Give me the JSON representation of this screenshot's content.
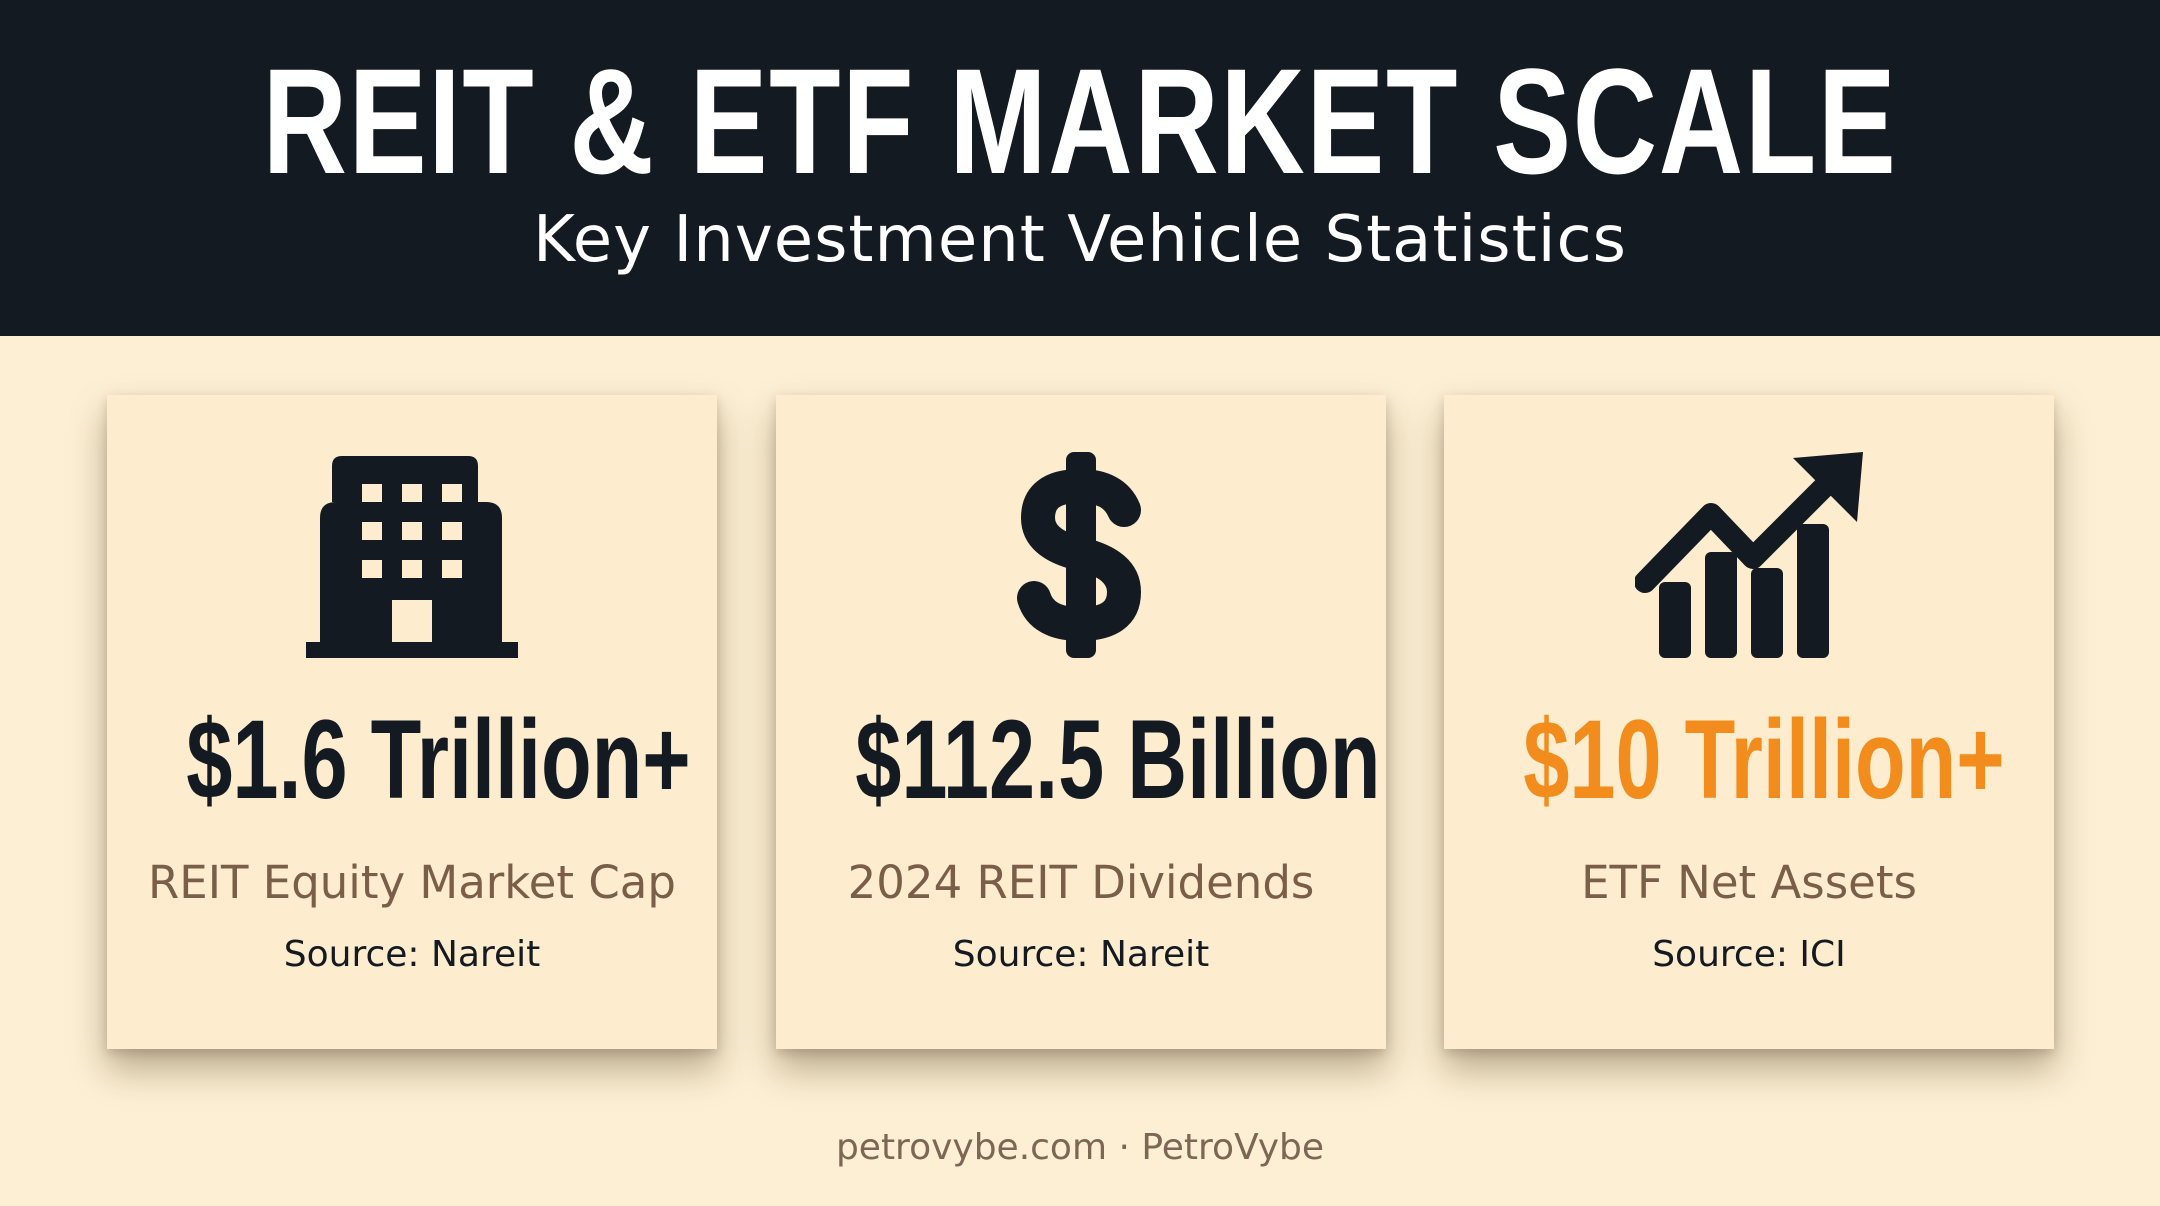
{
  "header": {
    "title": "REIT & ETF MARKET SCALE",
    "subtitle": "Key Investment Vehicle Statistics"
  },
  "cards": [
    {
      "icon": "building-icon",
      "stat": "$1.6 Trillion+",
      "label": "REIT Equity Market Cap",
      "source": "Source: Nareit"
    },
    {
      "icon": "dollar-sign-icon",
      "stat": "$112.5 Billion",
      "label": "2024 REIT Dividends",
      "source": "Source: Nareit"
    },
    {
      "icon": "growth-chart-icon",
      "stat": "$10 Trillion+",
      "label": "ETF Net Assets",
      "source": "Source: ICI"
    }
  ],
  "footer": {
    "text": "petrovybe.com · PetroVybe"
  },
  "colors": {
    "header_bg": "#141a21",
    "page_bg": "#fdefd3",
    "card_bg": "#fdecce",
    "accent": "#f28c1c",
    "label_text": "#7a5e48"
  }
}
